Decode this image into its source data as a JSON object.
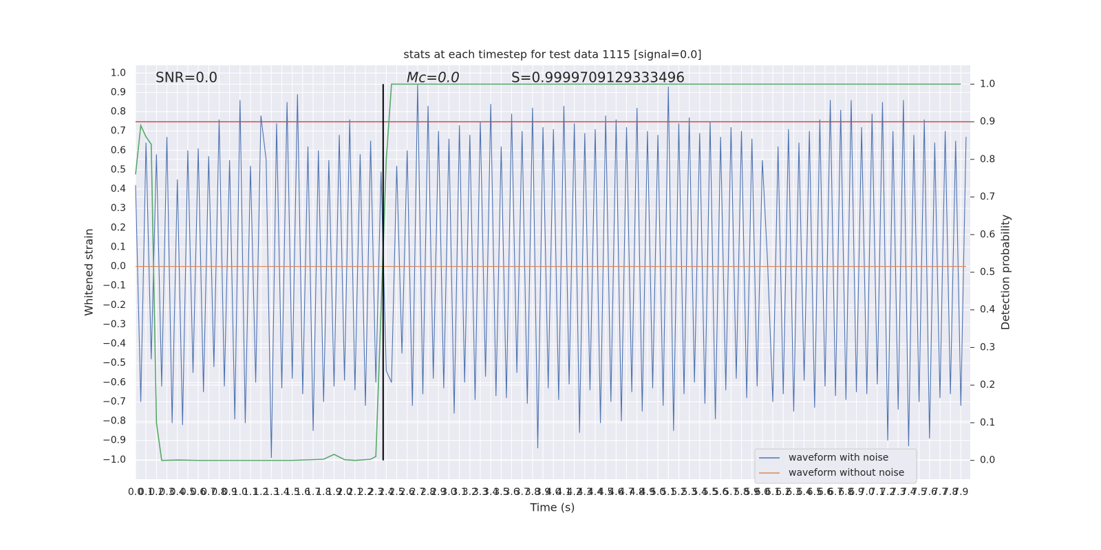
{
  "chart_data": {
    "type": "line",
    "title": "stats at each timestep for test data 1115 [signal=0.0]",
    "xlabel": "Time (s)",
    "ylabel": "Whitened strain",
    "y2label": "Detection probability",
    "annotations": [
      "SNR=0.0",
      "Mc=0.0",
      "S=0.9999709129333496"
    ],
    "xlim": [
      0,
      7.99
    ],
    "ylim": [
      -1.1,
      1.04
    ],
    "y2lim": [
      -0.05,
      1.05
    ],
    "grid": true,
    "legend": "lower right",
    "xticks": [
      {
        "value": 0,
        "label": "0.0"
      },
      0.1,
      0.2,
      0.3,
      0.4,
      0.5,
      0.6,
      0.7,
      0.8,
      0.9,
      {
        "value": 1,
        "label": "1.0"
      },
      1.1,
      1.2,
      1.3,
      1.4,
      1.5,
      1.6,
      1.7,
      1.8,
      1.9,
      {
        "value": 2,
        "label": "2.0"
      },
      2.1,
      2.2,
      2.3,
      2.4,
      2.5,
      2.6,
      2.7,
      2.8,
      2.9,
      {
        "value": 3,
        "label": "3.0"
      },
      3.1,
      3.2,
      3.3,
      3.4,
      3.5,
      3.6,
      3.7,
      3.8,
      3.9,
      {
        "value": 4,
        "label": "4.0"
      },
      4.1,
      4.2,
      4.3,
      4.4,
      4.5,
      4.6,
      4.7,
      4.8,
      4.9,
      {
        "value": 5,
        "label": "5.0"
      },
      5.1,
      5.2,
      5.3,
      5.4,
      5.5,
      5.6,
      5.7,
      5.8,
      5.9,
      {
        "value": 6,
        "label": "6.0"
      },
      6.1,
      6.2,
      6.3,
      6.4,
      6.5,
      6.6,
      6.7,
      6.8,
      6.9,
      {
        "value": 7,
        "label": "7.0"
      },
      7.1,
      7.2,
      7.3,
      7.4,
      7.5,
      7.6,
      7.7,
      7.8,
      7.9
    ],
    "yticks": [
      {
        "value": -1,
        "label": "−1.0"
      },
      {
        "value": -0.9,
        "label": "−0.9"
      },
      {
        "value": -0.8,
        "label": "−0.8"
      },
      {
        "value": -0.7,
        "label": "−0.7"
      },
      {
        "value": -0.6,
        "label": "−0.6"
      },
      {
        "value": -0.5,
        "label": "−0.5"
      },
      {
        "value": -0.4,
        "label": "−0.4"
      },
      {
        "value": -0.3,
        "label": "−0.3"
      },
      {
        "value": -0.2,
        "label": "−0.2"
      },
      {
        "value": -0.1,
        "label": "−0.1"
      },
      {
        "value": 0,
        "label": "0.0"
      },
      0.1,
      0.2,
      0.3,
      0.4,
      0.5,
      0.6,
      0.7,
      0.8,
      0.9,
      {
        "value": 1,
        "label": "1.0"
      }
    ],
    "y2ticks": [
      {
        "value": 0,
        "label": "0.0"
      },
      0.1,
      0.2,
      0.3,
      0.4,
      0.5,
      0.6,
      0.7,
      0.8,
      0.9,
      {
        "value": 1,
        "label": "1.0"
      }
    ],
    "threshold": {
      "value": 0.9,
      "color": "#c44e52"
    },
    "vline": {
      "x": 2.37,
      "from": 0,
      "to": 1,
      "color": "#000000"
    },
    "series": [
      {
        "name": "waveform with noise",
        "color": "#4c72b0",
        "x": [
          0,
          0.05,
          0.1,
          0.15,
          0.2,
          0.25,
          0.3,
          0.35,
          0.4,
          0.45,
          0.5,
          0.55,
          0.6,
          0.65,
          0.7,
          0.75,
          0.8,
          0.85,
          0.9,
          0.95,
          1,
          1.05,
          1.1,
          1.15,
          1.2,
          1.25,
          1.3,
          1.35,
          1.4,
          1.45,
          1.5,
          1.55,
          1.6,
          1.65,
          1.7,
          1.75,
          1.8,
          1.85,
          1.9,
          1.95,
          2,
          2.05,
          2.1,
          2.15,
          2.2,
          2.25,
          2.3,
          2.35,
          2.4,
          2.45,
          2.5,
          2.55,
          2.6,
          2.65,
          2.7,
          2.75,
          2.8,
          2.85,
          2.9,
          2.95,
          3,
          3.05,
          3.1,
          3.15,
          3.2,
          3.25,
          3.3,
          3.35,
          3.4,
          3.45,
          3.5,
          3.55,
          3.6,
          3.65,
          3.7,
          3.75,
          3.8,
          3.85,
          3.9,
          3.95,
          4,
          4.05,
          4.1,
          4.15,
          4.2,
          4.25,
          4.3,
          4.35,
          4.4,
          4.45,
          4.5,
          4.55,
          4.6,
          4.65,
          4.7,
          4.75,
          4.8,
          4.85,
          4.9,
          4.95,
          5,
          5.05,
          5.1,
          5.15,
          5.2,
          5.25,
          5.3,
          5.35,
          5.4,
          5.45,
          5.5,
          5.55,
          5.6,
          5.65,
          5.7,
          5.75,
          5.8,
          5.85,
          5.9,
          5.95,
          6,
          6.05,
          6.1,
          6.15,
          6.2,
          6.25,
          6.3,
          6.35,
          6.4,
          6.45,
          6.5,
          6.55,
          6.6,
          6.65,
          6.7,
          6.75,
          6.8,
          6.85,
          6.9,
          6.95,
          7,
          7.05,
          7.1,
          7.15,
          7.2,
          7.25,
          7.3,
          7.35,
          7.4,
          7.45,
          7.5,
          7.55,
          7.6,
          7.65,
          7.7,
          7.75,
          7.8,
          7.85,
          7.9,
          7.95
        ],
        "values": [
          0.42,
          -0.7,
          0.64,
          -0.48,
          0.58,
          -0.62,
          0.67,
          -0.81,
          0.45,
          -0.82,
          0.6,
          -0.55,
          0.61,
          -0.65,
          0.57,
          -0.52,
          0.76,
          -0.62,
          0.55,
          -0.79,
          0.86,
          -0.81,
          0.52,
          -0.6,
          0.78,
          0.55,
          -0.99,
          0.74,
          -0.63,
          0.85,
          -0.58,
          0.89,
          -0.66,
          0.62,
          -0.85,
          0.6,
          -0.7,
          0.55,
          -0.62,
          0.68,
          -0.59,
          0.76,
          -0.64,
          0.58,
          -0.72,
          0.65,
          -0.6,
          0.49,
          -0.54,
          -0.6,
          0.52,
          -0.45,
          0.6,
          -0.72,
          0.94,
          -0.66,
          0.83,
          -0.58,
          0.7,
          -0.63,
          0.66,
          -0.76,
          0.73,
          -0.6,
          0.68,
          -0.69,
          0.75,
          -0.57,
          0.84,
          -0.67,
          0.62,
          -0.68,
          0.79,
          -0.55,
          0.7,
          -0.71,
          0.82,
          -0.94,
          0.72,
          -0.63,
          0.71,
          -0.69,
          0.83,
          -0.61,
          0.74,
          -0.86,
          0.69,
          -0.64,
          0.71,
          -0.81,
          0.78,
          -0.7,
          0.76,
          -0.8,
          0.72,
          -0.65,
          0.82,
          -0.75,
          0.7,
          -0.63,
          0.68,
          -0.72,
          0.93,
          -0.85,
          0.74,
          -0.66,
          0.77,
          -0.6,
          0.69,
          -0.71,
          0.75,
          -0.79,
          0.67,
          -0.64,
          0.72,
          -0.58,
          0.7,
          -0.68,
          0.66,
          -0.62,
          0.55,
          0.02,
          -0.7,
          0.62,
          -0.66,
          0.71,
          -0.75,
          0.64,
          -0.59,
          0.7,
          -0.73,
          0.76,
          -0.62,
          0.86,
          -0.67,
          0.81,
          -0.69,
          0.86,
          -0.65,
          0.72,
          -0.66,
          0.79,
          -0.61,
          0.85,
          -0.9,
          0.7,
          -0.74,
          0.86,
          -0.93,
          0.68,
          -0.7,
          0.76,
          -0.89,
          0.64,
          -0.68,
          0.7,
          -0.66,
          0.65,
          -0.72,
          0.67
        ]
      },
      {
        "name": "waveform without noise",
        "color": "#dd8452",
        "x": [
          0,
          7.95
        ],
        "values": [
          0,
          0
        ]
      },
      {
        "color": "#55a868",
        "axis": "y2",
        "x": [
          0,
          0.05,
          0.1,
          0.15,
          0.2,
          0.25,
          0.4,
          0.6,
          0.8,
          1.0,
          1.5,
          1.8,
          1.9,
          2.0,
          2.1,
          2.25,
          2.3,
          2.35,
          2.4,
          2.45,
          7.9
        ],
        "values": [
          0.76,
          0.89,
          0.86,
          0.84,
          0.1,
          0.0,
          0.001,
          0.0,
          0.0,
          0.0,
          0.0,
          0.003,
          0.016,
          0.002,
          0.0,
          0.003,
          0.01,
          0.4,
          0.8,
          1.0,
          1.0
        ]
      }
    ]
  }
}
